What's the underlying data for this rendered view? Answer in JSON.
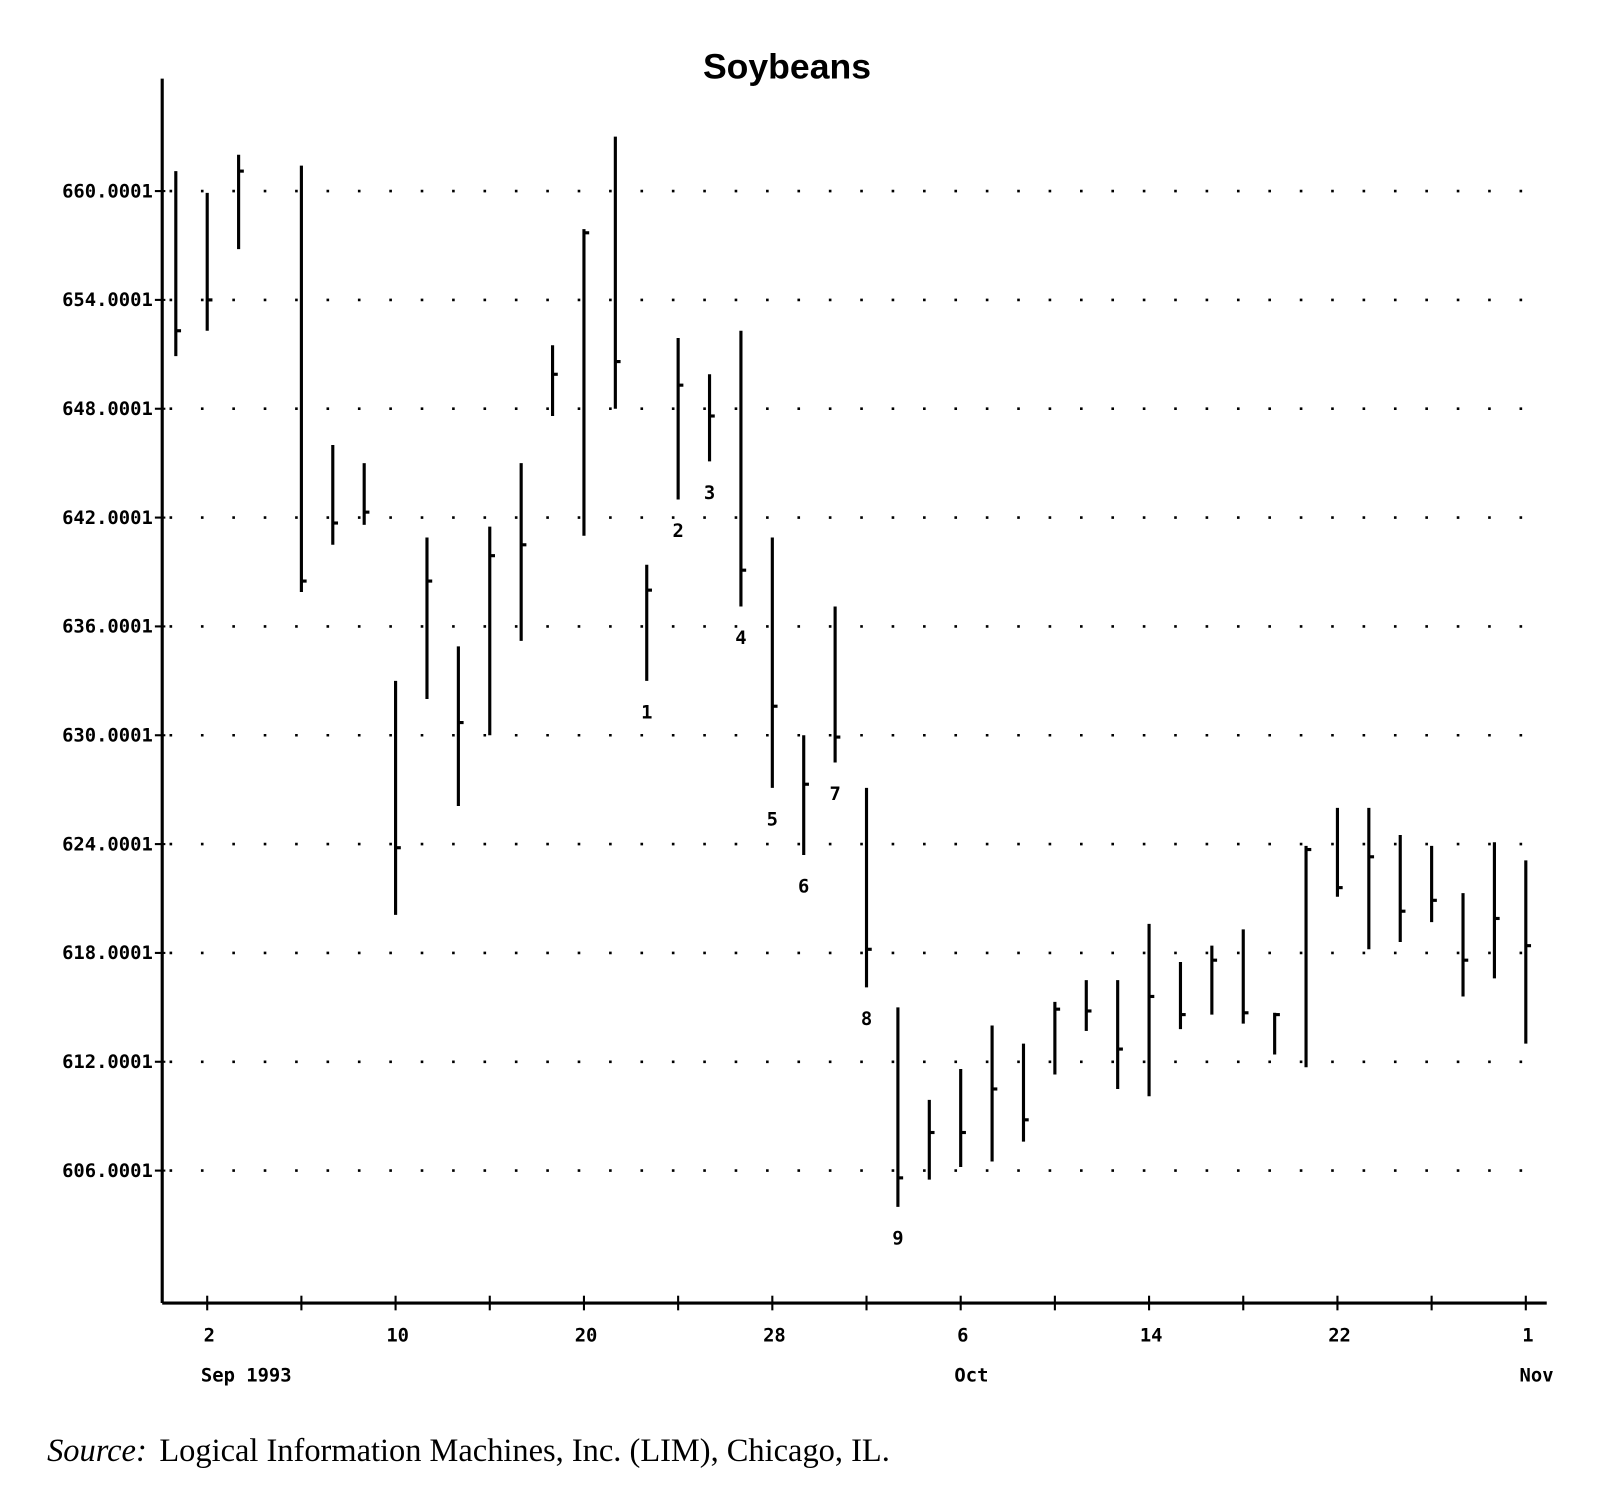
{
  "chart_data": {
    "type": "ohlc",
    "title": "Soybeans",
    "source_label": "Source:",
    "source": "Logical Information Machines, Inc. (LIM), Chicago, IL.",
    "categories": [
      null,
      "2",
      null,
      null,
      null,
      null,
      null,
      "10",
      null,
      null,
      null,
      null,
      null,
      "20",
      null,
      null,
      null,
      null,
      null,
      "28",
      null,
      null,
      null,
      null,
      null,
      "6",
      null,
      null,
      null,
      null,
      null,
      "14",
      null,
      null,
      null,
      null,
      null,
      "22",
      null,
      null,
      null,
      null,
      null,
      "1"
    ],
    "month_labels": [
      null,
      "Sep 1993",
      null,
      null,
      null,
      null,
      null,
      null,
      null,
      null,
      null,
      null,
      null,
      null,
      null,
      null,
      null,
      null,
      null,
      null,
      null,
      null,
      null,
      null,
      null,
      "Oct",
      null,
      null,
      null,
      null,
      null,
      null,
      null,
      null,
      null,
      null,
      null,
      null,
      null,
      null,
      null,
      null,
      null,
      "Nov"
    ],
    "color": "#000000",
    "high": [
      661.1,
      659.9,
      662.0,
      null,
      661.4,
      646.0,
      645.0,
      633.0,
      640.9,
      634.9,
      641.5,
      645.0,
      651.5,
      657.9,
      663.0,
      639.4,
      651.9,
      649.9,
      652.3,
      640.9,
      630.0,
      637.1,
      627.1,
      615.0,
      609.9,
      611.6,
      614.0,
      613.0,
      615.3,
      616.5,
      616.5,
      619.6,
      617.5,
      618.4,
      619.3,
      614.7,
      623.9,
      626.0,
      626.0,
      624.5,
      623.9,
      621.3,
      624.1,
      623.1
    ],
    "low": [
      650.9,
      652.3,
      656.8,
      null,
      637.9,
      640.5,
      641.6,
      620.1,
      632.0,
      626.1,
      630.0,
      635.2,
      647.6,
      641.0,
      648.0,
      633.0,
      643.0,
      645.1,
      637.1,
      627.1,
      623.4,
      628.5,
      616.1,
      604.0,
      605.5,
      606.2,
      606.5,
      607.6,
      611.3,
      613.7,
      610.5,
      610.1,
      613.8,
      614.6,
      614.1,
      612.4,
      611.7,
      621.1,
      618.2,
      618.6,
      619.7,
      615.6,
      616.6,
      613.0
    ],
    "close": [
      652.3,
      654.0,
      661.1,
      null,
      638.5,
      641.7,
      642.3,
      623.8,
      638.5,
      630.7,
      639.9,
      640.5,
      649.9,
      657.7,
      650.6,
      638.0,
      649.3,
      647.6,
      639.1,
      631.6,
      627.3,
      629.9,
      618.2,
      605.6,
      608.1,
      608.1,
      610.5,
      608.8,
      614.9,
      614.8,
      612.7,
      615.6,
      614.6,
      617.6,
      614.7,
      614.6,
      623.7,
      621.6,
      623.3,
      620.3,
      620.9,
      617.6,
      619.9,
      618.4
    ],
    "bar_labels": [
      null,
      null,
      null,
      null,
      null,
      null,
      null,
      null,
      null,
      null,
      null,
      null,
      null,
      null,
      null,
      "1",
      "2",
      "3",
      "4",
      "5",
      "6",
      "7",
      "8",
      "9",
      null,
      null,
      null,
      null,
      null,
      null,
      null,
      null,
      null,
      null,
      null,
      null,
      null,
      null,
      null,
      null,
      null,
      null,
      null,
      null
    ],
    "ylim": [
      598.7,
      666.2
    ],
    "yticks": [
      606.0001,
      612.0001,
      618.0001,
      624.0001,
      630.0001,
      636.0001,
      642.0001,
      648.0001,
      654.0001,
      660.0001
    ],
    "grid": true
  }
}
